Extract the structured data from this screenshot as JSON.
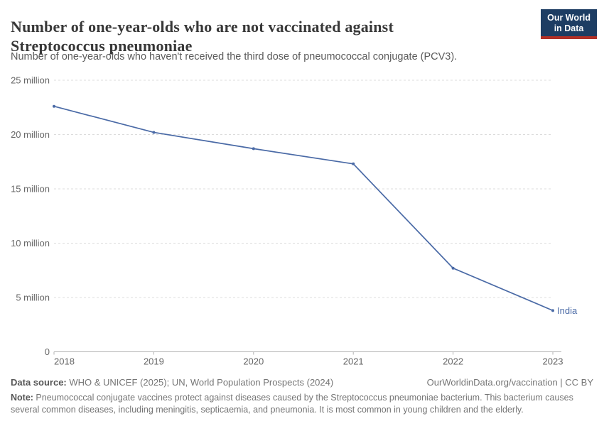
{
  "header": {
    "title_lines": [
      "Number of one-year-olds who are not vaccinated against",
      "Streptococcus pneumoniae"
    ],
    "subtitle": "Number of one-year-olds who haven't received the third dose of pneumococcal conjugate (PCV3)."
  },
  "logo": {
    "line1": "Our World",
    "line2": "in Data",
    "bg_color": "#1d3d63",
    "accent_color": "#b13027"
  },
  "chart_data": {
    "type": "line",
    "title": "Number of one-year-olds who are not vaccinated against Streptococcus pneumoniae",
    "unit": "million",
    "x": [
      2018,
      2019,
      2020,
      2021,
      2022,
      2023
    ],
    "x_labels": [
      "2018",
      "2019",
      "2020",
      "2021",
      "2022",
      "2023"
    ],
    "series": [
      {
        "name": "India",
        "color": "#4a6aa6",
        "values_millions": [
          22.6,
          20.2,
          18.7,
          17.3,
          7.7,
          3.8
        ]
      }
    ],
    "y_ticks": [
      {
        "value": 0,
        "label": "0"
      },
      {
        "value": 5,
        "label": "5 million"
      },
      {
        "value": 10,
        "label": "10 million"
      },
      {
        "value": 15,
        "label": "15 million"
      },
      {
        "value": 20,
        "label": "20 million"
      },
      {
        "value": 25,
        "label": "25 million"
      }
    ],
    "ylim": [
      0,
      25
    ],
    "grid": "horizontal-dashed",
    "legend": "end-of-line-label",
    "colors": {
      "grid": "#dcdcdc",
      "axis": "#b3b3b3",
      "tick_label": "#666666"
    }
  },
  "footer": {
    "source_label": "Data source:",
    "source_text": " WHO & UNICEF (2025); UN, World Population Prospects (2024)",
    "rights": "OurWorldinData.org/vaccination | CC BY",
    "note_label": "Note:",
    "note_text": " Pneumococcal conjugate vaccines protect against diseases caused by the Streptococcus pneumoniae bacterium. This bacterium causes several common diseases, including meningitis, septicaemia, and pneumonia. It is most common in young children and the elderly."
  }
}
